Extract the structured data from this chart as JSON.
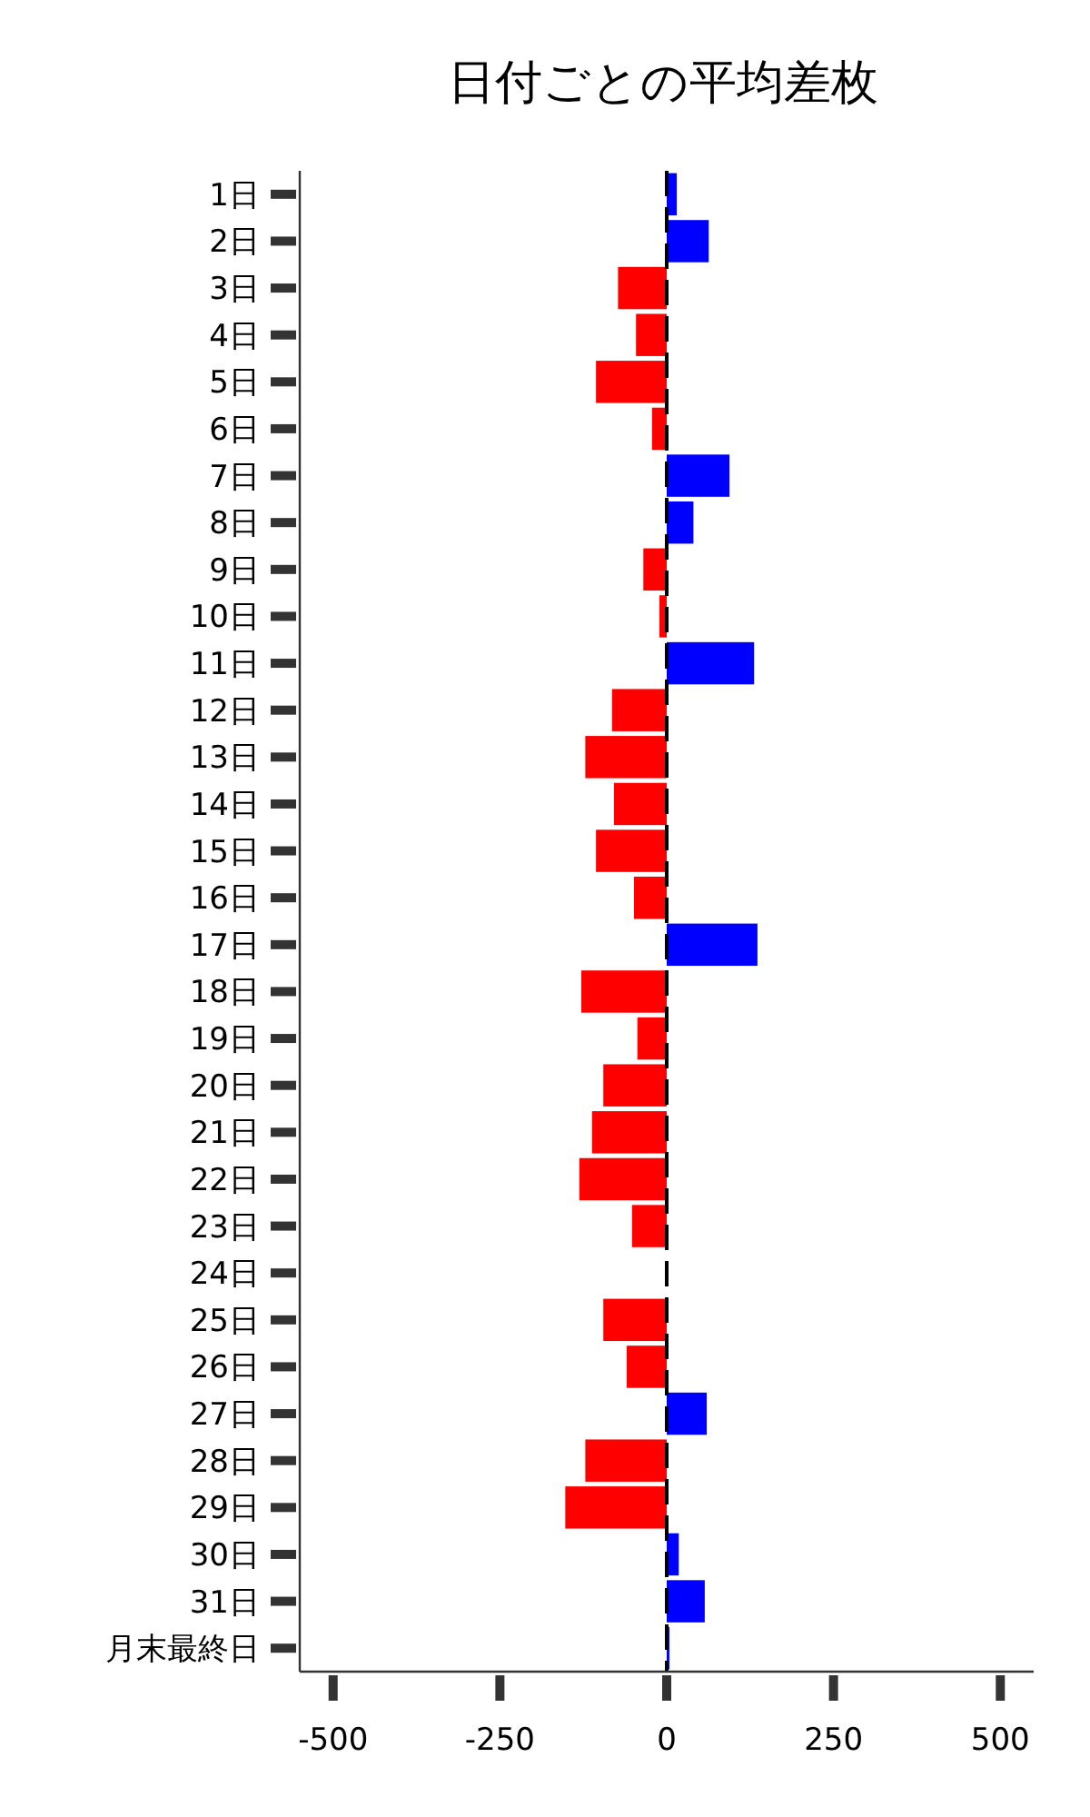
{
  "chart_data": {
    "type": "bar",
    "orientation": "horizontal",
    "title": "日付ごとの平均差枚",
    "categories": [
      "1日",
      "2日",
      "3日",
      "4日",
      "5日",
      "6日",
      "7日",
      "8日",
      "9日",
      "10日",
      "11日",
      "12日",
      "13日",
      "14日",
      "15日",
      "16日",
      "17日",
      "18日",
      "19日",
      "20日",
      "21日",
      "22日",
      "23日",
      "24日",
      "25日",
      "26日",
      "27日",
      "28日",
      "29日",
      "30日",
      "31日",
      "月末最終日"
    ],
    "values": [
      15,
      63,
      -73,
      -46,
      -106,
      -22,
      94,
      40,
      -35,
      -11,
      131,
      -82,
      -122,
      -79,
      -106,
      -49,
      136,
      -128,
      -44,
      -95,
      -112,
      -131,
      -52,
      0,
      -95,
      -60,
      60,
      -122,
      -152,
      18,
      57,
      4
    ],
    "colors": [
      "#0000ff",
      "#0000ff",
      "#ff0000",
      "#ff0000",
      "#ff0000",
      "#ff0000",
      "#0000ff",
      "#0000ff",
      "#ff0000",
      "#ff0000",
      "#0000ff",
      "#ff0000",
      "#ff0000",
      "#ff0000",
      "#ff0000",
      "#ff0000",
      "#0000ff",
      "#ff0000",
      "#ff0000",
      "#ff0000",
      "#ff0000",
      "#ff0000",
      "#ff0000",
      "#ff0000",
      "#ff0000",
      "#ff0000",
      "#0000ff",
      "#ff0000",
      "#ff0000",
      "#0000ff",
      "#0000ff",
      "#0000ff"
    ],
    "xlim": [
      -550,
      550
    ],
    "xticks": [
      -500,
      -250,
      0,
      250,
      500
    ],
    "ref_lines": [
      {
        "axis": "x",
        "value": 0,
        "color": "#000000",
        "line_style": "dashed"
      }
    ]
  }
}
